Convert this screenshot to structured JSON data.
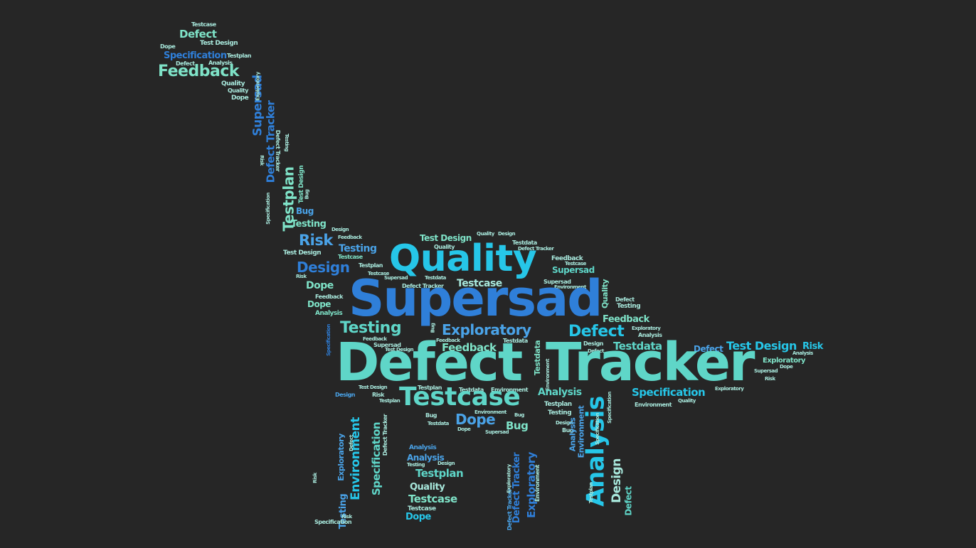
{
  "colors": {
    "background": "#262626",
    "blue": "#2f7fd9",
    "cyan": "#26c6e8",
    "teal": "#5fd6c8",
    "mint": "#7fe3c8",
    "pale": "#a8e8dc",
    "sky": "#4aa3e8"
  },
  "words": [
    {
      "text": "Testcase"
    },
    {
      "text": "Defect"
    },
    {
      "text": "Test Design"
    },
    {
      "text": "Dope"
    },
    {
      "text": "Specification"
    },
    {
      "text": "Testplan"
    },
    {
      "text": "Defect"
    },
    {
      "text": "Analysis"
    },
    {
      "text": "Feedback"
    },
    {
      "text": "Quality"
    },
    {
      "text": "Quality"
    },
    {
      "text": "Dope"
    },
    {
      "text": "Supersad"
    },
    {
      "text": "Exploratory"
    },
    {
      "text": "Defect Tracker"
    },
    {
      "text": "Testing"
    },
    {
      "text": "Defect Tracker"
    },
    {
      "text": "Risk"
    },
    {
      "text": "Testplan"
    },
    {
      "text": "Test Design"
    },
    {
      "text": "Bug"
    },
    {
      "text": "Specification"
    },
    {
      "text": "Bug"
    },
    {
      "text": "Testing"
    },
    {
      "text": "Design"
    },
    {
      "text": "Feedback"
    },
    {
      "text": "Risk"
    },
    {
      "text": "Test Design"
    },
    {
      "text": "Testing"
    },
    {
      "text": "Testcase"
    },
    {
      "text": "Design"
    },
    {
      "text": "Testplan"
    },
    {
      "text": "Testcase"
    },
    {
      "text": "Risk"
    },
    {
      "text": "Dope"
    },
    {
      "text": "Feedback"
    },
    {
      "text": "Dope"
    },
    {
      "text": "Analysis"
    },
    {
      "text": "Test Design"
    },
    {
      "text": "Quality"
    },
    {
      "text": "Design"
    },
    {
      "text": "Quality"
    },
    {
      "text": "Testdata"
    },
    {
      "text": "Defect Tracker"
    },
    {
      "text": "Quality"
    },
    {
      "text": "Supersad"
    },
    {
      "text": "Testdata"
    },
    {
      "text": "Defect Tracker"
    },
    {
      "text": "Testcase"
    },
    {
      "text": "Feedback"
    },
    {
      "text": "Testcase"
    },
    {
      "text": "Supersad"
    },
    {
      "text": "Supersad"
    },
    {
      "text": "Environment"
    },
    {
      "text": "Quality"
    },
    {
      "text": "Defect"
    },
    {
      "text": "Testing"
    },
    {
      "text": "Feedback"
    },
    {
      "text": "Exploratory"
    },
    {
      "text": "Analysis"
    },
    {
      "text": "Specification"
    },
    {
      "text": "Testing"
    },
    {
      "text": "Bug"
    },
    {
      "text": "Exploratory"
    },
    {
      "text": "Defect"
    },
    {
      "text": "Feedback"
    },
    {
      "text": "Feedback"
    },
    {
      "text": "Testdata"
    },
    {
      "text": "Supersad"
    },
    {
      "text": "Test Design"
    },
    {
      "text": "Design"
    },
    {
      "text": "Defect"
    },
    {
      "text": "Testdata"
    },
    {
      "text": "Feedback"
    },
    {
      "text": "Testdata"
    },
    {
      "text": "Defect"
    },
    {
      "text": "Test Design"
    },
    {
      "text": "Risk"
    },
    {
      "text": "Analysis"
    },
    {
      "text": "Exploratory"
    },
    {
      "text": "Supersad"
    },
    {
      "text": "Dope"
    },
    {
      "text": "Risk"
    },
    {
      "text": "Defect"
    },
    {
      "text": "Tracker"
    },
    {
      "text": "Environment"
    },
    {
      "text": "Test Design"
    },
    {
      "text": "Testplan"
    },
    {
      "text": "Testdata"
    },
    {
      "text": "Environment"
    },
    {
      "text": "Analysis"
    },
    {
      "text": "Specification"
    },
    {
      "text": "Exploratory"
    },
    {
      "text": "Design"
    },
    {
      "text": "Risk"
    },
    {
      "text": "Testplan"
    },
    {
      "text": "Testcase"
    },
    {
      "text": "Testplan"
    },
    {
      "text": "Quality"
    },
    {
      "text": "Environment"
    },
    {
      "text": "Bug"
    },
    {
      "text": "Environment"
    },
    {
      "text": "Bug"
    },
    {
      "text": "Testing"
    },
    {
      "text": "Testdata"
    },
    {
      "text": "Dope"
    },
    {
      "text": "Dope"
    },
    {
      "text": "Supersad"
    },
    {
      "text": "Bug"
    },
    {
      "text": "Design"
    },
    {
      "text": "Bug"
    },
    {
      "text": "Analysis"
    },
    {
      "text": "Specification"
    },
    {
      "text": "Environment"
    },
    {
      "text": "Exploratory"
    },
    {
      "text": "Environment"
    },
    {
      "text": "Specification"
    },
    {
      "text": "Defect"
    },
    {
      "text": "Defect Tracker"
    },
    {
      "text": "Risk"
    },
    {
      "text": "Testing"
    },
    {
      "text": "Risk"
    },
    {
      "text": "Specification"
    },
    {
      "text": "Analysis"
    },
    {
      "text": "Analysis"
    },
    {
      "text": "Testing"
    },
    {
      "text": "Design"
    },
    {
      "text": "Testplan"
    },
    {
      "text": "Quality"
    },
    {
      "text": "Testcase"
    },
    {
      "text": "Testcase"
    },
    {
      "text": "Dope"
    },
    {
      "text": "Defect Tracker"
    },
    {
      "text": "Defect Tracker"
    },
    {
      "text": "Exploratory"
    },
    {
      "text": "Exploratory"
    },
    {
      "text": "Environment"
    },
    {
      "text": "Analysis"
    },
    {
      "text": "Specification"
    },
    {
      "text": "Testplan"
    },
    {
      "text": "Design"
    },
    {
      "text": "Defect"
    }
  ]
}
